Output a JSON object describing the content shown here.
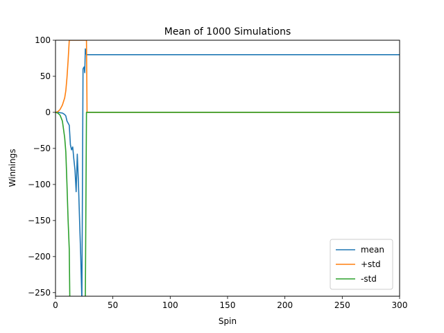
{
  "chart_data": {
    "type": "line",
    "title": "Mean of 1000 Simulations",
    "xlabel": "Spin",
    "ylabel": "Winnings",
    "xlim": [
      0,
      300
    ],
    "ylim": [
      -255,
      100
    ],
    "xticks": [
      0,
      50,
      100,
      150,
      200,
      250,
      300
    ],
    "yticks": [
      100,
      50,
      0,
      -50,
      -100,
      -150,
      -200,
      -250
    ],
    "grid": false,
    "legend_position": "lower-right",
    "series": [
      {
        "name": "mean",
        "color": "#1f77b4",
        "points": [
          [
            0,
            0
          ],
          [
            2,
            0
          ],
          [
            4,
            -0.5
          ],
          [
            6,
            -1
          ],
          [
            8,
            -3
          ],
          [
            9,
            -5
          ],
          [
            10,
            -12
          ],
          [
            11,
            -15
          ],
          [
            12,
            -18
          ],
          [
            13,
            -45
          ],
          [
            14,
            -52
          ],
          [
            15,
            -48
          ],
          [
            16,
            -65
          ],
          [
            17,
            -80
          ],
          [
            18,
            -110
          ],
          [
            19,
            -58
          ],
          [
            20,
            -98
          ],
          [
            21,
            -150
          ],
          [
            22,
            -200
          ],
          [
            23,
            -262
          ],
          [
            24,
            60
          ],
          [
            24.5,
            62
          ],
          [
            25,
            63
          ],
          [
            25.5,
            55
          ],
          [
            26,
            88
          ],
          [
            27,
            80
          ],
          [
            300,
            80
          ]
        ]
      },
      {
        "name": "+std",
        "color": "#ff7f0e",
        "points": [
          [
            0,
            0
          ],
          [
            2,
            1
          ],
          [
            4,
            4
          ],
          [
            6,
            10
          ],
          [
            8,
            20
          ],
          [
            9,
            30
          ],
          [
            10,
            48
          ],
          [
            11,
            72
          ],
          [
            12,
            100
          ],
          [
            26,
            100
          ],
          [
            27,
            100
          ],
          [
            27.5,
            0
          ],
          [
            300,
            0
          ]
        ]
      },
      {
        "name": "-std",
        "color": "#2ca02c",
        "points": [
          [
            0,
            0
          ],
          [
            2,
            -1
          ],
          [
            4,
            -4
          ],
          [
            6,
            -12
          ],
          [
            8,
            -35
          ],
          [
            9,
            -55
          ],
          [
            10,
            -100
          ],
          [
            11,
            -150
          ],
          [
            12,
            -190
          ],
          [
            12.5,
            -262
          ],
          [
            26,
            -262
          ],
          [
            27,
            0
          ],
          [
            300,
            0
          ]
        ]
      }
    ]
  }
}
